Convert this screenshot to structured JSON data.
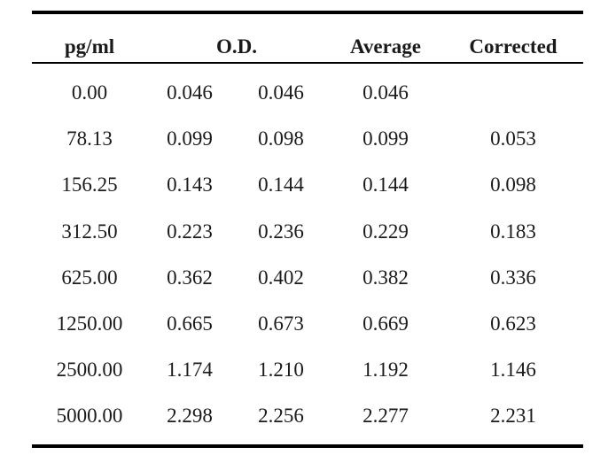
{
  "table": {
    "headers": {
      "concentration": "pg/ml",
      "od": "O.D.",
      "average": "Average",
      "corrected": "Corrected"
    },
    "rows": [
      {
        "concentration": "0.00",
        "od1": "0.046",
        "od2": "0.046",
        "average": "0.046",
        "corrected": ""
      },
      {
        "concentration": "78.13",
        "od1": "0.099",
        "od2": "0.098",
        "average": "0.099",
        "corrected": "0.053"
      },
      {
        "concentration": "156.25",
        "od1": "0.143",
        "od2": "0.144",
        "average": "0.144",
        "corrected": "0.098"
      },
      {
        "concentration": "312.50",
        "od1": "0.223",
        "od2": "0.236",
        "average": "0.229",
        "corrected": "0.183"
      },
      {
        "concentration": "625.00",
        "od1": "0.362",
        "od2": "0.402",
        "average": "0.382",
        "corrected": "0.336"
      },
      {
        "concentration": "1250.00",
        "od1": "0.665",
        "od2": "0.673",
        "average": "0.669",
        "corrected": "0.623"
      },
      {
        "concentration": "2500.00",
        "od1": "1.174",
        "od2": "1.210",
        "average": "1.192",
        "corrected": "1.146"
      },
      {
        "concentration": "5000.00",
        "od1": "2.298",
        "od2": "2.256",
        "average": "2.277",
        "corrected": "2.231"
      }
    ]
  }
}
